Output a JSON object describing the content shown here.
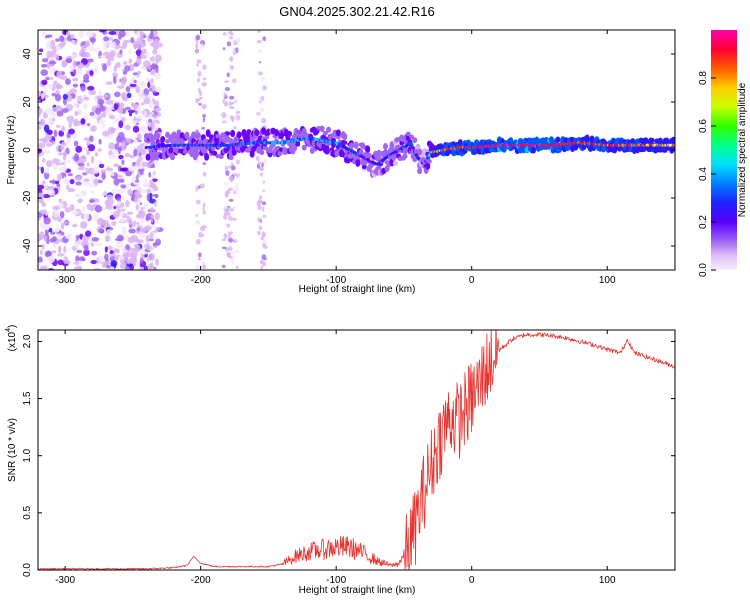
{
  "title": "GN04.2025.302.21.42.R16",
  "colors": {
    "snr_line": "#e8302c",
    "axis": "#000000",
    "background": "#ffffff",
    "colormap": [
      "#f3e6fb",
      "#d9b3f5",
      "#a066f2",
      "#6a00ff",
      "#2a18ff",
      "#0057ff",
      "#00c8ff",
      "#00ff88",
      "#55ff00",
      "#ffff00",
      "#ff9900",
      "#ff1a1a",
      "#ff0055",
      "#ff00aa"
    ]
  },
  "chart_data": [
    {
      "type": "heatmap",
      "name": "spectrogram",
      "xlabel": "Height of straight line (km)",
      "ylabel": "Frequency (Hz)",
      "xlim": [
        -320,
        150
      ],
      "ylim": [
        -50,
        50
      ],
      "xticks": [
        -300,
        -200,
        -100,
        0,
        100
      ],
      "xtick_labels": [
        "-300",
        "-200",
        "-100",
        "0",
        "100"
      ],
      "yticks": [
        -40,
        -20,
        0,
        20,
        40
      ],
      "ytick_labels": [
        "-40",
        "-20",
        "0",
        "20",
        "40"
      ],
      "colorbar": {
        "label": "Normalized spectral amplitude",
        "range": [
          0,
          1
        ],
        "ticks": [
          0.0,
          0.2,
          0.4,
          0.6,
          0.8
        ],
        "tick_labels": [
          "0.0",
          "0.2",
          "0.4",
          "0.6",
          "0.8"
        ]
      },
      "ridge": {
        "x": [
          -240,
          -220,
          -200,
          -180,
          -160,
          -140,
          -120,
          -100,
          -90,
          -80,
          -70,
          -60,
          -50,
          -45,
          -40,
          -35,
          -30,
          -20,
          -10,
          0,
          20,
          40,
          60,
          80,
          100,
          120,
          150
        ],
        "freq": [
          1,
          2,
          2,
          2,
          3,
          3,
          5,
          3,
          0,
          -3,
          -6,
          -2,
          1,
          3,
          -3,
          -6,
          -1,
          0,
          1,
          1,
          2,
          2,
          2,
          3,
          2,
          2,
          2
        ],
        "amplitude": [
          0.3,
          0.35,
          0.35,
          0.35,
          0.4,
          0.4,
          0.4,
          0.4,
          0.35,
          0.3,
          0.3,
          0.3,
          0.3,
          0.35,
          0.25,
          0.2,
          0.6,
          0.8,
          0.85,
          0.9,
          0.95,
          0.95,
          0.95,
          0.8,
          0.85,
          0.8,
          0.7
        ]
      },
      "noise_region": {
        "x": [
          -320,
          -230
        ],
        "freq": [
          -50,
          50
        ],
        "amplitude": 0.15
      }
    },
    {
      "type": "line",
      "name": "snr",
      "xlabel": "Height of straight line (km)",
      "ylabel": "SNR (10 * v/v)",
      "scale_label": "(x10",
      "scale_exponent": "4",
      "xlim": [
        -320,
        150
      ],
      "ylim": [
        0,
        2.1
      ],
      "xticks": [
        -300,
        -200,
        -100,
        0,
        100
      ],
      "xtick_labels": [
        "-300",
        "-200",
        "-100",
        "0",
        "100"
      ],
      "yticks": [
        0.0,
        0.5,
        1.0,
        1.5,
        2.0
      ],
      "ytick_labels": [
        "0.0",
        "0.5",
        "1.0",
        "1.5",
        "2.0"
      ],
      "series": [
        {
          "name": "SNR",
          "x": [
            -320,
            -280,
            -240,
            -220,
            -210,
            -205,
            -200,
            -190,
            -150,
            -140,
            -130,
            -120,
            -110,
            -100,
            -90,
            -80,
            -70,
            -60,
            -55,
            -50,
            -45,
            -40,
            -35,
            -30,
            -25,
            -20,
            -15,
            -10,
            -5,
            0,
            5,
            10,
            15,
            20,
            30,
            40,
            50,
            60,
            70,
            80,
            90,
            100,
            110,
            115,
            120,
            130,
            150
          ],
          "y": [
            0.01,
            0.01,
            0.01,
            0.02,
            0.04,
            0.12,
            0.06,
            0.03,
            0.03,
            0.05,
            0.12,
            0.16,
            0.18,
            0.2,
            0.2,
            0.15,
            0.08,
            0.04,
            0.05,
            0.12,
            0.25,
            0.45,
            0.7,
            0.9,
            1.1,
            1.25,
            1.35,
            1.3,
            1.4,
            1.5,
            1.6,
            1.75,
            1.85,
            1.92,
            2.02,
            2.06,
            2.06,
            2.05,
            2.03,
            2.0,
            1.97,
            1.93,
            1.9,
            2.02,
            1.9,
            1.86,
            1.78
          ]
        }
      ]
    }
  ]
}
